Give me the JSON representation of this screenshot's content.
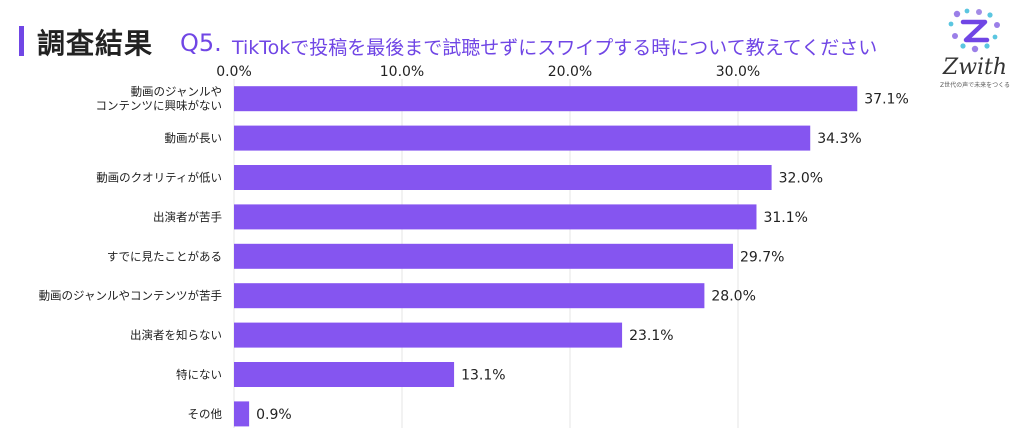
{
  "header": {
    "title": "調査結果",
    "question_number": "Q5.",
    "question_text": "TikTokで投稿を最後まで試聴せずにスワイプする時について教えてください"
  },
  "logo": {
    "name": "Zwith",
    "tagline": "Z世代の声で未来をつくる"
  },
  "colors": {
    "bar": "#8555f0",
    "accent": "#7046e5",
    "grid": "#e4e4e4"
  },
  "chart_data": {
    "type": "bar",
    "orientation": "horizontal",
    "categories": [
      [
        "動画のジャンルや",
        "コンテンツに興味がない"
      ],
      [
        "動画が長い"
      ],
      [
        "動画のクオリティが低い"
      ],
      [
        "出演者が苦手"
      ],
      [
        "すでに見たことがある"
      ],
      [
        "動画のジャンルやコンテンツが苦手"
      ],
      [
        "出演者を知らない"
      ],
      [
        "特にない"
      ],
      [
        "その他"
      ]
    ],
    "values": [
      37.1,
      34.3,
      32.0,
      31.1,
      29.7,
      28.0,
      23.1,
      13.1,
      0.9
    ],
    "value_labels": [
      "37.1%",
      "34.3%",
      "32.0%",
      "31.1%",
      "29.7%",
      "28.0%",
      "23.1%",
      "13.1%",
      "0.9%"
    ],
    "xticks": [
      0,
      10,
      20,
      30
    ],
    "xtick_labels": [
      "0.0%",
      "10.0%",
      "20.0%",
      "30.0%"
    ],
    "xlim": [
      0,
      40
    ],
    "title": "",
    "xlabel": "",
    "ylabel": "",
    "grid": true,
    "axis_position": "top"
  }
}
